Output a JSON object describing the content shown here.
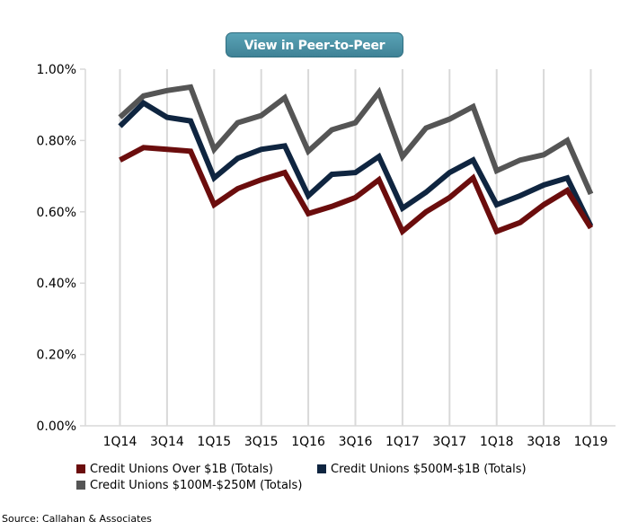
{
  "button": {
    "label": "View in Peer-to-Peer"
  },
  "source": "Source: Callahan & Associates",
  "chart_data": {
    "type": "line",
    "x": [
      "1Q14",
      "2Q14",
      "3Q14",
      "4Q14",
      "1Q15",
      "2Q15",
      "3Q15",
      "4Q15",
      "1Q16",
      "2Q16",
      "3Q16",
      "4Q16",
      "1Q17",
      "2Q17",
      "3Q17",
      "4Q17",
      "1Q18",
      "2Q18",
      "3Q18",
      "4Q18",
      "1Q19"
    ],
    "x_tick_labels": [
      "1Q14",
      "3Q14",
      "1Q15",
      "3Q15",
      "1Q16",
      "3Q16",
      "1Q17",
      "3Q17",
      "1Q18",
      "3Q18",
      "1Q19"
    ],
    "ylim": [
      0,
      1.0
    ],
    "y_ticks": [
      0,
      0.2,
      0.4,
      0.6,
      0.8,
      1.0
    ],
    "y_tick_labels": [
      "0.00%",
      "0.20%",
      "0.40%",
      "0.60%",
      "0.80%",
      "1.00%"
    ],
    "grid": "vertical",
    "legend_position": "bottom",
    "series": [
      {
        "name": "Credit Unions Over $1B (Totals)",
        "color": "#6b0d0d",
        "values": [
          0.745,
          0.78,
          0.775,
          0.77,
          0.62,
          0.665,
          0.69,
          0.71,
          0.595,
          0.615,
          0.64,
          0.69,
          0.545,
          0.6,
          0.64,
          0.695,
          0.545,
          0.57,
          0.62,
          0.66,
          0.555
        ]
      },
      {
        "name": "Credit Unions $500M-$1B (Totals)",
        "color": "#0f2540",
        "values": [
          0.84,
          0.905,
          0.865,
          0.855,
          0.695,
          0.75,
          0.775,
          0.785,
          0.645,
          0.705,
          0.71,
          0.755,
          0.61,
          0.655,
          0.71,
          0.745,
          0.62,
          0.645,
          0.675,
          0.695,
          0.56
        ]
      },
      {
        "name": "Credit Unions $100M-$250M (Totals)",
        "color": "#555555",
        "values": [
          0.865,
          0.925,
          0.94,
          0.95,
          0.775,
          0.85,
          0.87,
          0.92,
          0.77,
          0.83,
          0.85,
          0.935,
          0.755,
          0.835,
          0.86,
          0.895,
          0.715,
          0.745,
          0.76,
          0.8,
          0.65
        ]
      }
    ]
  }
}
